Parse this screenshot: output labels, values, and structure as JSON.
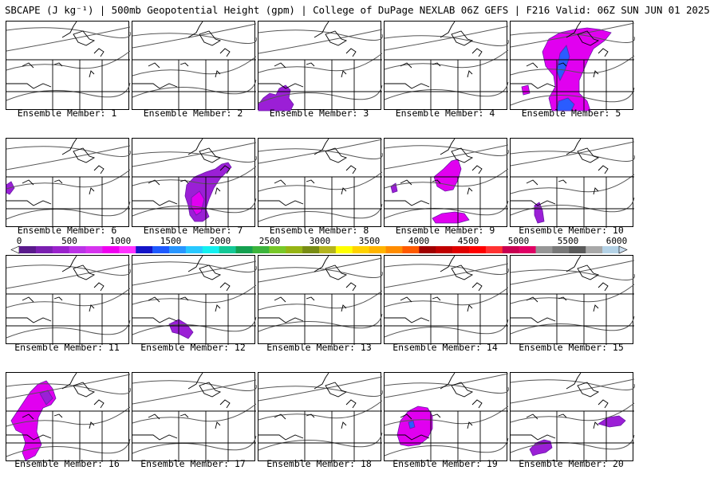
{
  "title": "SBCAPE (J kg⁻¹) | 500mb Geopotential Height (gpm) | College of DuPage NEXLAB 06Z GEFS | F216 Valid: 06Z SUN JUN 01 2025",
  "colorbar": {
    "ticks": [
      "0",
      "500",
      "1000",
      "1500",
      "2000",
      "2500",
      "3000",
      "3500",
      "4000",
      "4500",
      "5000",
      "5500",
      "6000"
    ],
    "colors": [
      "#ffffff",
      "#5a1a8c",
      "#7a1fb0",
      "#9a22cc",
      "#bb33e6",
      "#d633ee",
      "#f000f0",
      "#ff33ff",
      "#1414c8",
      "#1e5aff",
      "#2896ff",
      "#28c8ff",
      "#14f0f0",
      "#14c896",
      "#14a050",
      "#3cb43c",
      "#78c828",
      "#96b414",
      "#788c14",
      "#b4b41e",
      "#ffff00",
      "#ffd200",
      "#ffb400",
      "#ff8c00",
      "#ff5a00",
      "#a00000",
      "#c00000",
      "#e00000",
      "#ff0000",
      "#ff3232",
      "#c80050",
      "#e00064",
      "#969696",
      "#787878",
      "#5a5a5a",
      "#a8a8a8",
      "#b4d2e6",
      "#c8dcee"
    ]
  },
  "panels": [
    {
      "label": "Ensemble Member: 1"
    },
    {
      "label": "Ensemble Member: 2"
    },
    {
      "label": "Ensemble Member: 3"
    },
    {
      "label": "Ensemble Member: 4"
    },
    {
      "label": "Ensemble Member: 5"
    },
    {
      "label": "Ensemble Member: 6"
    },
    {
      "label": "Ensemble Member: 7"
    },
    {
      "label": "Ensemble Member: 8"
    },
    {
      "label": "Ensemble Member: 9"
    },
    {
      "label": "Ensemble Member: 10"
    },
    {
      "label": "Ensemble Member: 11"
    },
    {
      "label": "Ensemble Member: 12"
    },
    {
      "label": "Ensemble Member: 13"
    },
    {
      "label": "Ensemble Member: 14"
    },
    {
      "label": "Ensemble Member: 15"
    },
    {
      "label": "Ensemble Member: 16"
    },
    {
      "label": "Ensemble Member: 17"
    },
    {
      "label": "Ensemble Member: 18"
    },
    {
      "label": "Ensemble Member: 19"
    },
    {
      "label": "Ensemble Member: 20"
    }
  ],
  "colors": {
    "cape_low": "#9b1fd6",
    "cape_mid": "#e100f0",
    "cape_high": "#2a5cff",
    "contour": "#555555",
    "border": "#000000"
  }
}
